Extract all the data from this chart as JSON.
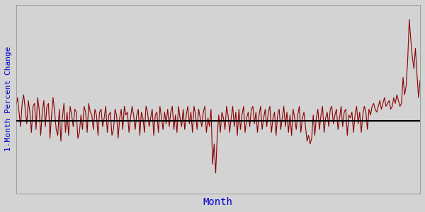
{
  "ylabel": "1-Month Percent Change",
  "xlabel": "Month",
  "ylabel_color": "#0000CC",
  "xlabel_color": "#0000CC",
  "line_color": "#8B0000",
  "zero_line_color": "#000000",
  "background_color": "#D3D3D3",
  "fig_background": "#D3D3D3",
  "values": [
    0.5,
    0.8,
    0.3,
    -0.2,
    0.6,
    0.9,
    0.4,
    -0.1,
    0.7,
    0.3,
    -0.4,
    0.5,
    0.6,
    -0.3,
    0.8,
    0.4,
    -0.5,
    0.3,
    0.7,
    -0.2,
    0.5,
    0.6,
    -0.6,
    0.2,
    0.8,
    0.3,
    -0.3,
    -0.5,
    0.4,
    -0.7,
    0.1,
    0.6,
    -0.4,
    0.3,
    -0.5,
    0.5,
    0.2,
    -0.2,
    0.4,
    0.3,
    -0.6,
    -0.4,
    0.2,
    -0.3,
    0.5,
    0.3,
    -0.4,
    0.6,
    0.3,
    0.2,
    -0.3,
    0.4,
    0.2,
    -0.5,
    0.3,
    0.4,
    -0.2,
    0.1,
    0.5,
    -0.4,
    0.2,
    0.3,
    -0.5,
    -0.3,
    0.4,
    0.2,
    -0.6,
    0.1,
    0.4,
    -0.3,
    0.5,
    0.2,
    0.3,
    -0.4,
    0.1,
    0.5,
    0.2,
    -0.3,
    0.2,
    0.4,
    -0.5,
    0.3,
    0.1,
    -0.4,
    0.5,
    0.3,
    -0.2,
    0.1,
    0.4,
    -0.5,
    0.2,
    0.3,
    -0.4,
    0.5,
    0.1,
    -0.3,
    0.3,
    -0.1,
    0.4,
    -0.2,
    0.3,
    0.5,
    -0.3,
    0.2,
    -0.4,
    0.5,
    0.1,
    -0.2,
    0.4,
    -0.3,
    0.2,
    0.5,
    -0.1,
    0.3,
    -0.4,
    0.5,
    0.2,
    -0.3,
    0.4,
    0.1,
    -0.2,
    0.3,
    0.5,
    -0.4,
    0.1,
    -0.2,
    0.4,
    -1.5,
    -0.8,
    -1.8,
    -0.5,
    0.2,
    -0.4,
    0.3,
    0.1,
    -0.3,
    0.5,
    0.2,
    -0.4,
    0.1,
    0.5,
    -0.2,
    0.3,
    -0.5,
    0.4,
    -0.3,
    0.2,
    0.5,
    -0.4,
    0.1,
    0.3,
    -0.2,
    0.4,
    0.5,
    -0.1,
    0.3,
    -0.4,
    0.2,
    0.5,
    -0.3,
    0.1,
    0.4,
    -0.2,
    0.3,
    0.5,
    -0.4,
    0.1,
    0.3,
    -0.5,
    0.2,
    0.4,
    -0.3,
    0.1,
    0.5,
    -0.2,
    0.3,
    -0.4,
    0.2,
    -0.5,
    0.4,
    0.1,
    -0.3,
    0.2,
    0.5,
    -0.4,
    0.1,
    0.3,
    -0.2,
    -0.7,
    -0.5,
    -0.8,
    -0.6,
    0.2,
    -0.5,
    0.1,
    0.4,
    -0.3,
    0.2,
    0.5,
    -0.4,
    0.1,
    0.3,
    -0.2,
    0.4,
    0.5,
    -0.1,
    0.2,
    0.4,
    -0.3,
    0.1,
    0.5,
    -0.2,
    0.3,
    0.4,
    -0.5,
    0.2,
    0.1,
    0.3,
    -0.4,
    0.2,
    0.5,
    -0.1,
    0.3,
    -0.4,
    0.2,
    0.5,
    0.3,
    -0.3,
    0.4,
    0.2,
    0.5,
    0.6,
    0.4,
    0.3,
    0.5,
    0.7,
    0.4,
    0.6,
    0.8,
    0.5,
    0.6,
    0.7,
    0.4,
    0.5,
    0.8,
    0.6,
    0.9,
    0.7,
    0.5,
    0.6,
    1.5,
    0.9,
    1.2,
    2.1,
    3.5,
    2.8,
    2.2,
    1.8,
    2.5,
    1.6,
    0.8,
    1.4
  ],
  "ylim": [
    -2.5,
    4.0
  ],
  "line_width": 0.8,
  "figsize": [
    6.0,
    3.0
  ],
  "dpi": 100,
  "grid_color": "#BEBEBE",
  "ylabel_fontsize": 8,
  "xlabel_fontsize": 10
}
